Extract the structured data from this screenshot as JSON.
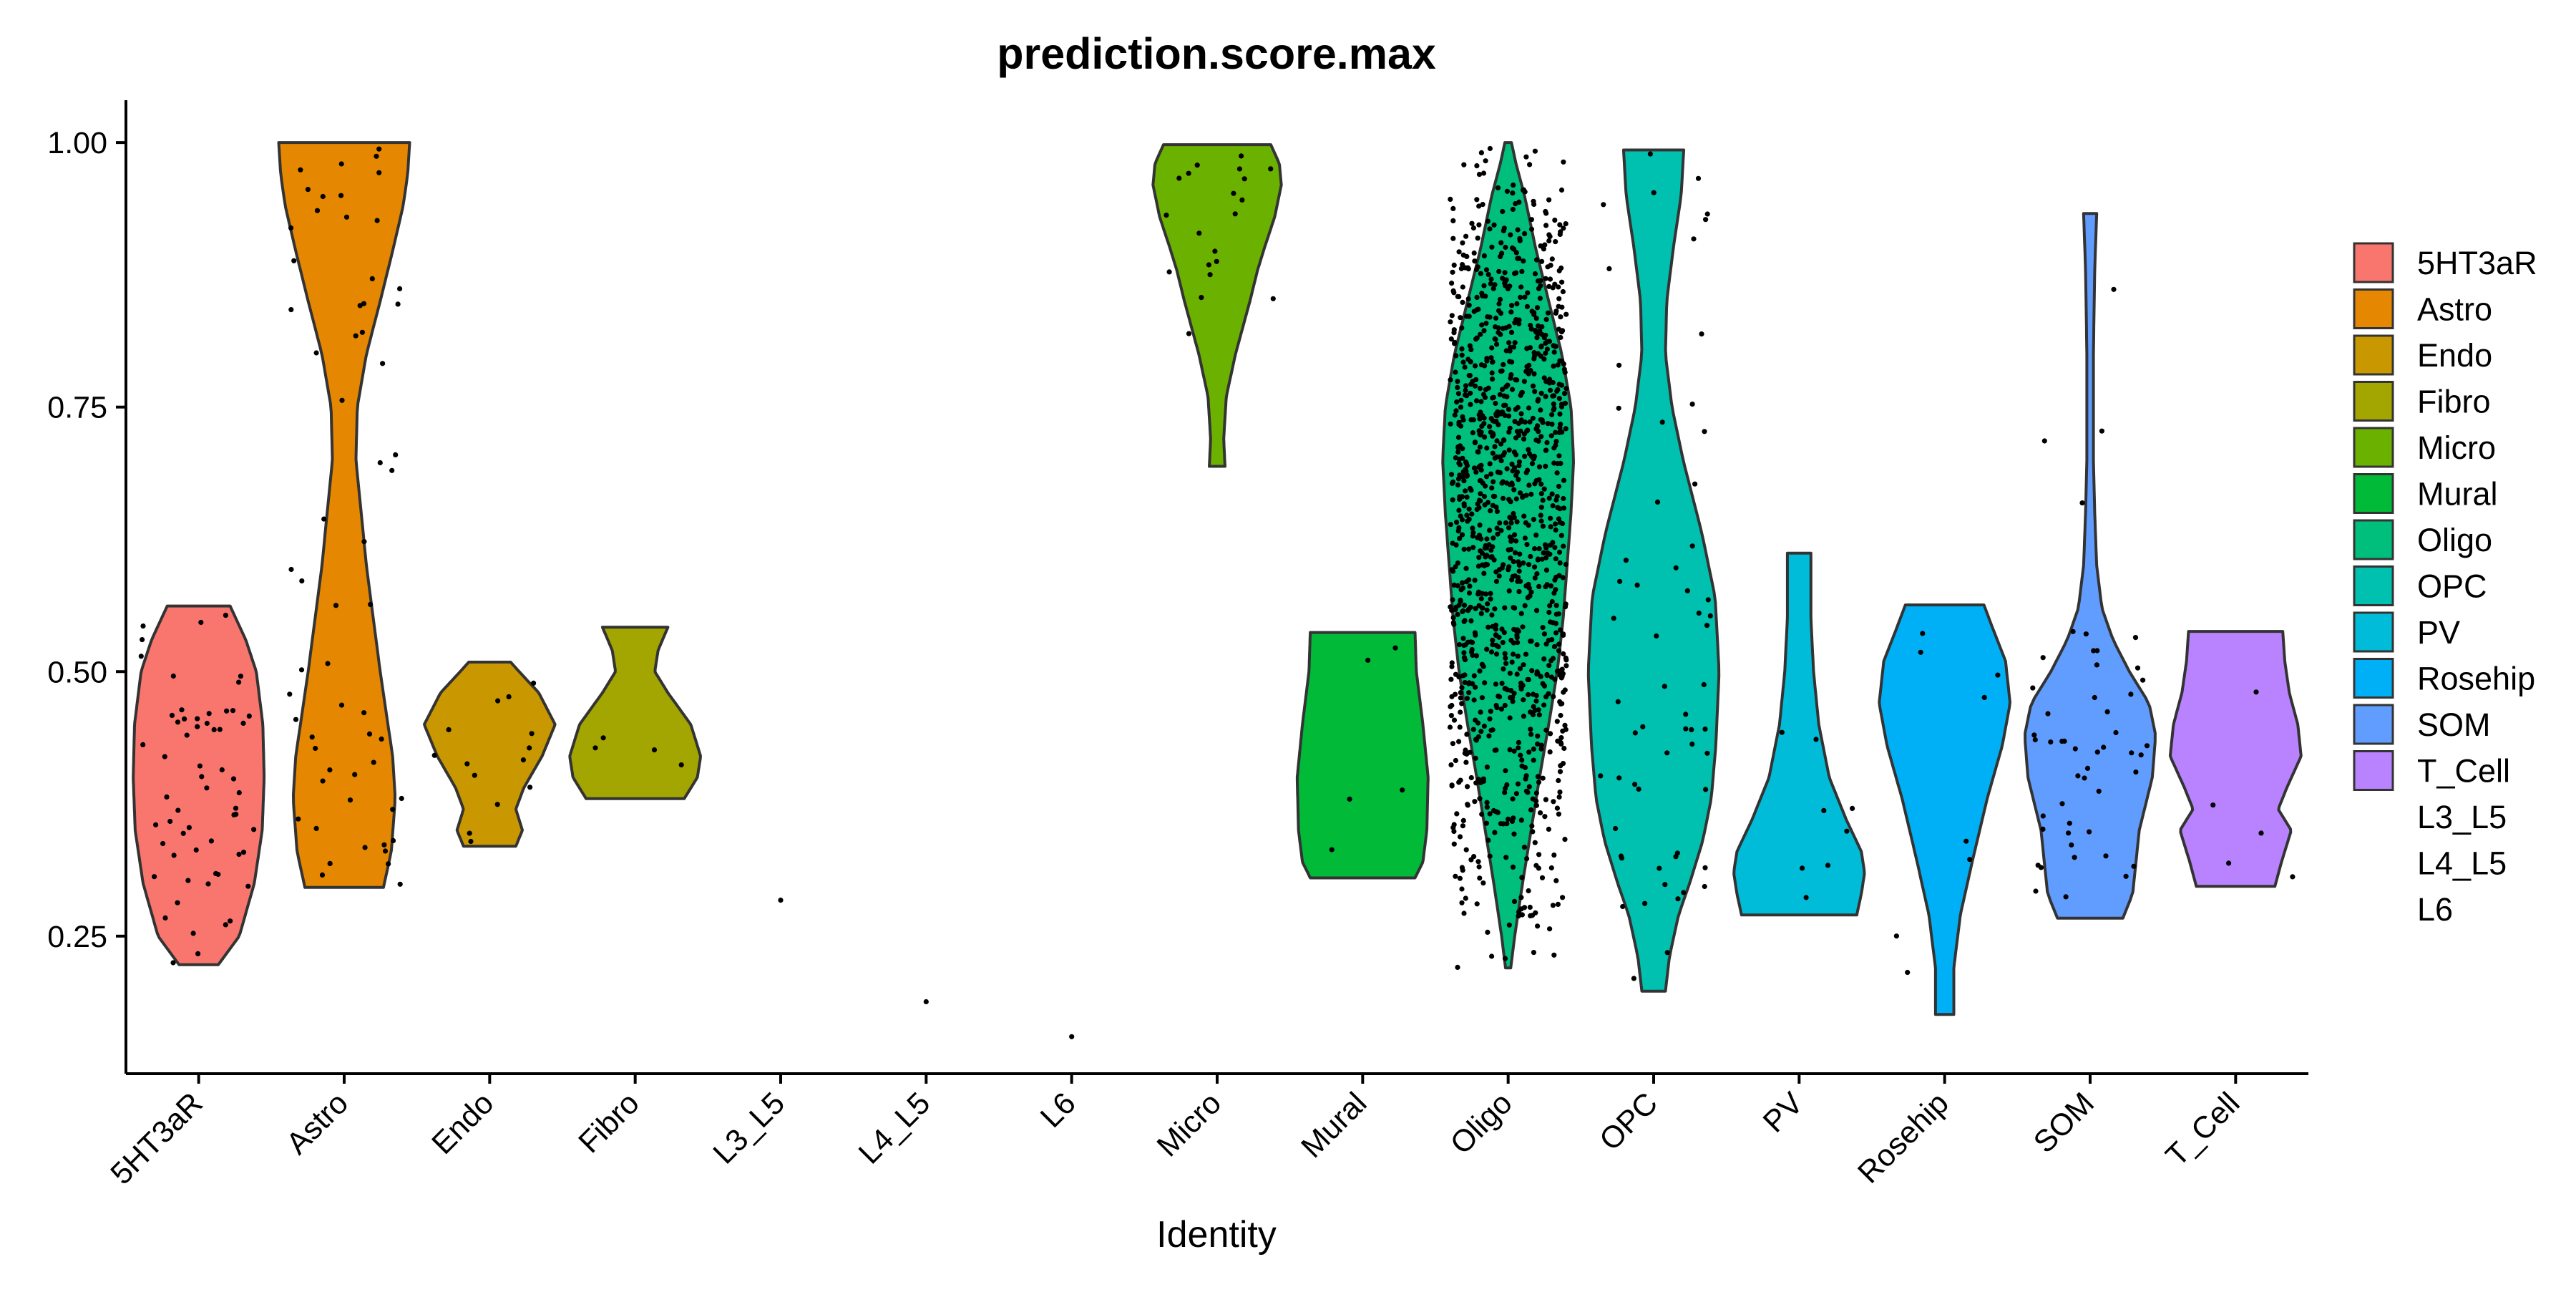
{
  "chart_data": {
    "type": "violin",
    "title": "prediction.score.max",
    "xlabel": "Identity",
    "ylabel": "",
    "ylim": [
      0.12,
      1.04
    ],
    "yticks": [
      "0.25",
      "0.50",
      "0.75",
      "1.00"
    ],
    "grid": false,
    "legend_position": "right",
    "categories": [
      "5HT3aR",
      "Astro",
      "Endo",
      "Fibro",
      "L3_L5",
      "L4_L5",
      "L6",
      "Micro",
      "Mural",
      "Oligo",
      "OPC",
      "PV",
      "Rosehip",
      "SOM",
      "T_Cell"
    ],
    "legend": [
      {
        "label": "5HT3aR",
        "color": "#F8766D"
      },
      {
        "label": "Astro",
        "color": "#E58700"
      },
      {
        "label": "Endo",
        "color": "#C99800"
      },
      {
        "label": "Fibro",
        "color": "#A3A500"
      },
      {
        "label": "Micro",
        "color": "#6BB100"
      },
      {
        "label": "Mural",
        "color": "#00BA38"
      },
      {
        "label": "Oligo",
        "color": "#00BF7D"
      },
      {
        "label": "OPC",
        "color": "#00C0AF"
      },
      {
        "label": "PV",
        "color": "#00BCD8"
      },
      {
        "label": "Rosehip",
        "color": "#00B0F6"
      },
      {
        "label": "SOM",
        "color": "#619CFF"
      },
      {
        "label": "T_Cell",
        "color": "#B983FF"
      },
      {
        "label": "L3_L5",
        "color": null
      },
      {
        "label": "L4_L5",
        "color": null
      },
      {
        "label": "L6",
        "color": null
      }
    ],
    "series": [
      {
        "name": "5HT3aR",
        "color": "#F8766D",
        "min": 0.223,
        "max": 0.562,
        "n_points": 60,
        "profile": [
          [
            0.223,
            0.3
          ],
          [
            0.25,
            0.62
          ],
          [
            0.3,
            0.85
          ],
          [
            0.35,
            0.97
          ],
          [
            0.4,
            1.0
          ],
          [
            0.45,
            0.98
          ],
          [
            0.5,
            0.88
          ],
          [
            0.53,
            0.72
          ],
          [
            0.562,
            0.48
          ]
        ]
      },
      {
        "name": "Astro",
        "color": "#E58700",
        "min": 0.296,
        "max": 1.0,
        "n_points": 60,
        "profile": [
          [
            0.296,
            0.6
          ],
          [
            0.33,
            0.72
          ],
          [
            0.38,
            0.78
          ],
          [
            0.42,
            0.74
          ],
          [
            0.5,
            0.55
          ],
          [
            0.6,
            0.34
          ],
          [
            0.7,
            0.18
          ],
          [
            0.75,
            0.2
          ],
          [
            0.8,
            0.34
          ],
          [
            0.85,
            0.55
          ],
          [
            0.9,
            0.75
          ],
          [
            0.94,
            0.9
          ],
          [
            0.97,
            0.97
          ],
          [
            1.0,
            1.0
          ]
        ]
      },
      {
        "name": "Endo",
        "color": "#C99800",
        "min": 0.335,
        "max": 0.509,
        "n_points": 14,
        "profile": [
          [
            0.335,
            0.4
          ],
          [
            0.35,
            0.5
          ],
          [
            0.37,
            0.4
          ],
          [
            0.39,
            0.52
          ],
          [
            0.42,
            0.8
          ],
          [
            0.45,
            1.0
          ],
          [
            0.48,
            0.75
          ],
          [
            0.5,
            0.45
          ],
          [
            0.509,
            0.32
          ]
        ]
      },
      {
        "name": "Fibro",
        "color": "#A3A500",
        "min": 0.38,
        "max": 0.542,
        "n_points": 4,
        "profile": [
          [
            0.38,
            0.75
          ],
          [
            0.4,
            0.95
          ],
          [
            0.42,
            1.0
          ],
          [
            0.45,
            0.85
          ],
          [
            0.48,
            0.5
          ],
          [
            0.5,
            0.3
          ],
          [
            0.52,
            0.35
          ],
          [
            0.542,
            0.5
          ]
        ]
      },
      {
        "name": "L3_L5",
        "color": null,
        "min": 0.284,
        "max": 0.284,
        "n_points": 1,
        "profile": []
      },
      {
        "name": "L4_L5",
        "color": null,
        "min": 0.188,
        "max": 0.188,
        "n_points": 1,
        "profile": []
      },
      {
        "name": "L6",
        "color": null,
        "min": 0.155,
        "max": 0.155,
        "n_points": 1,
        "profile": []
      },
      {
        "name": "Micro",
        "color": "#6BB100",
        "min": 0.694,
        "max": 0.998,
        "n_points": 20,
        "profile": [
          [
            0.694,
            0.12
          ],
          [
            0.72,
            0.1
          ],
          [
            0.76,
            0.14
          ],
          [
            0.8,
            0.28
          ],
          [
            0.85,
            0.5
          ],
          [
            0.88,
            0.62
          ],
          [
            0.9,
            0.72
          ],
          [
            0.93,
            0.88
          ],
          [
            0.96,
            0.98
          ],
          [
            0.98,
            0.95
          ],
          [
            0.998,
            0.82
          ]
        ]
      },
      {
        "name": "Mural",
        "color": "#00BA38",
        "min": 0.305,
        "max": 0.537,
        "n_points": 5,
        "profile": [
          [
            0.305,
            0.8
          ],
          [
            0.32,
            0.92
          ],
          [
            0.35,
            0.98
          ],
          [
            0.4,
            1.0
          ],
          [
            0.45,
            0.92
          ],
          [
            0.5,
            0.82
          ],
          [
            0.537,
            0.8
          ]
        ]
      },
      {
        "name": "Oligo",
        "color": "#00BF7D",
        "min": 0.22,
        "max": 1.0,
        "n_points": 1200,
        "profile": [
          [
            0.22,
            0.04
          ],
          [
            0.25,
            0.1
          ],
          [
            0.3,
            0.22
          ],
          [
            0.35,
            0.35
          ],
          [
            0.4,
            0.48
          ],
          [
            0.45,
            0.62
          ],
          [
            0.5,
            0.75
          ],
          [
            0.55,
            0.84
          ],
          [
            0.6,
            0.9
          ],
          [
            0.65,
            0.96
          ],
          [
            0.7,
            1.0
          ],
          [
            0.75,
            0.96
          ],
          [
            0.8,
            0.82
          ],
          [
            0.85,
            0.62
          ],
          [
            0.9,
            0.42
          ],
          [
            0.95,
            0.25
          ],
          [
            0.98,
            0.12
          ],
          [
            1.0,
            0.05
          ]
        ]
      },
      {
        "name": "OPC",
        "color": "#00C0AF",
        "min": 0.198,
        "max": 0.993,
        "n_points": 60,
        "profile": [
          [
            0.198,
            0.18
          ],
          [
            0.23,
            0.24
          ],
          [
            0.27,
            0.38
          ],
          [
            0.3,
            0.55
          ],
          [
            0.34,
            0.75
          ],
          [
            0.38,
            0.88
          ],
          [
            0.43,
            0.95
          ],
          [
            0.5,
            1.0
          ],
          [
            0.57,
            0.94
          ],
          [
            0.63,
            0.74
          ],
          [
            0.7,
            0.45
          ],
          [
            0.75,
            0.28
          ],
          [
            0.8,
            0.18
          ],
          [
            0.85,
            0.2
          ],
          [
            0.9,
            0.3
          ],
          [
            0.95,
            0.42
          ],
          [
            0.993,
            0.46
          ]
        ]
      },
      {
        "name": "PV",
        "color": "#00BCD8",
        "min": 0.27,
        "max": 0.612,
        "n_points": 8,
        "profile": [
          [
            0.27,
            0.88
          ],
          [
            0.29,
            0.95
          ],
          [
            0.31,
            1.0
          ],
          [
            0.33,
            0.95
          ],
          [
            0.36,
            0.72
          ],
          [
            0.4,
            0.46
          ],
          [
            0.45,
            0.3
          ],
          [
            0.5,
            0.22
          ],
          [
            0.55,
            0.18
          ],
          [
            0.612,
            0.18
          ]
        ]
      },
      {
        "name": "Rosehip",
        "color": "#00B0F6",
        "min": 0.176,
        "max": 0.563,
        "n_points": 8,
        "profile": [
          [
            0.176,
            0.14
          ],
          [
            0.22,
            0.14
          ],
          [
            0.27,
            0.24
          ],
          [
            0.32,
            0.42
          ],
          [
            0.38,
            0.65
          ],
          [
            0.43,
            0.88
          ],
          [
            0.47,
            1.0
          ],
          [
            0.51,
            0.93
          ],
          [
            0.54,
            0.74
          ],
          [
            0.563,
            0.6
          ]
        ]
      },
      {
        "name": "SOM",
        "color": "#619CFF",
        "min": 0.267,
        "max": 0.933,
        "n_points": 50,
        "profile": [
          [
            0.267,
            0.5
          ],
          [
            0.29,
            0.65
          ],
          [
            0.32,
            0.7
          ],
          [
            0.35,
            0.75
          ],
          [
            0.4,
            0.95
          ],
          [
            0.44,
            1.0
          ],
          [
            0.47,
            0.9
          ],
          [
            0.5,
            0.6
          ],
          [
            0.53,
            0.35
          ],
          [
            0.56,
            0.18
          ],
          [
            0.6,
            0.1
          ],
          [
            0.65,
            0.07
          ],
          [
            0.7,
            0.05
          ],
          [
            0.8,
            0.05
          ],
          [
            0.88,
            0.07
          ],
          [
            0.933,
            0.1
          ]
        ]
      },
      {
        "name": "T_Cell",
        "color": "#B983FF",
        "min": 0.297,
        "max": 0.538,
        "n_points": 5,
        "profile": [
          [
            0.297,
            0.6
          ],
          [
            0.32,
            0.7
          ],
          [
            0.35,
            0.85
          ],
          [
            0.37,
            0.65
          ],
          [
            0.39,
            0.78
          ],
          [
            0.42,
            1.0
          ],
          [
            0.45,
            0.95
          ],
          [
            0.48,
            0.82
          ],
          [
            0.51,
            0.75
          ],
          [
            0.538,
            0.72
          ]
        ]
      }
    ]
  }
}
